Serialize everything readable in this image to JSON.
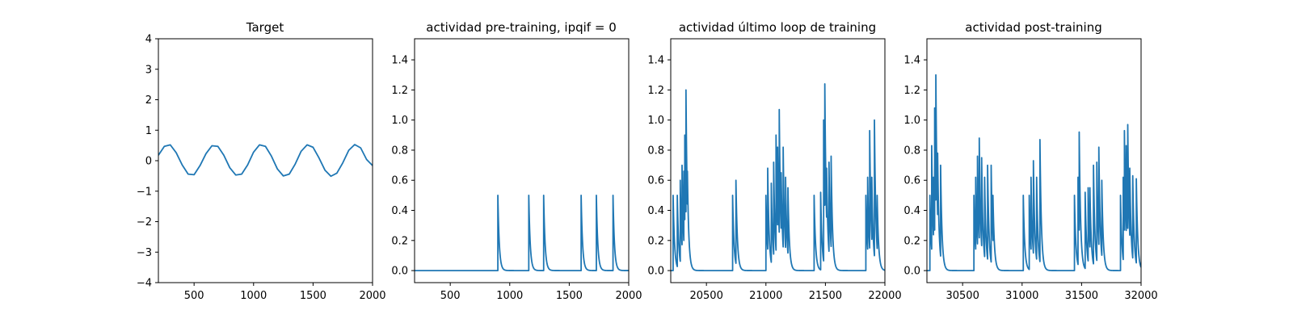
{
  "figure": {
    "background": "#ffffff"
  },
  "chart_data": [
    {
      "type": "line",
      "title": "Target",
      "xlabel": "",
      "ylabel": "",
      "xlim": [
        200,
        2000
      ],
      "ylim": [
        -4,
        4
      ],
      "xticks": [
        500,
        1000,
        1500,
        2000
      ],
      "yticks": [
        -4,
        -3,
        -2,
        -1,
        0,
        1,
        2,
        3,
        4
      ],
      "ytick_labels": [
        "−4",
        "−3",
        "−2",
        "−1",
        "0",
        "1",
        "2",
        "3",
        "4"
      ],
      "grid": false,
      "series": [
        {
          "color": "#1f77b4",
          "x": [
            200,
            250,
            300,
            350,
            400,
            450,
            500,
            550,
            600,
            650,
            700,
            750,
            800,
            850,
            900,
            950,
            1000,
            1050,
            1100,
            1150,
            1200,
            1250,
            1300,
            1350,
            1400,
            1450,
            1500,
            1550,
            1600,
            1650,
            1700,
            1750,
            1800,
            1850,
            1900,
            1950,
            2000
          ],
          "y": [
            0.18,
            0.47,
            0.52,
            0.26,
            -0.14,
            -0.44,
            -0.46,
            -0.16,
            0.23,
            0.49,
            0.47,
            0.18,
            -0.23,
            -0.47,
            -0.44,
            -0.14,
            0.28,
            0.52,
            0.47,
            0.15,
            -0.27,
            -0.5,
            -0.44,
            -0.11,
            0.31,
            0.52,
            0.44,
            0.09,
            -0.31,
            -0.51,
            -0.41,
            -0.07,
            0.34,
            0.53,
            0.42,
            0.04,
            -0.16
          ]
        }
      ]
    },
    {
      "type": "line",
      "title": "actividad pre-training, ipqif = 0",
      "xlabel": "",
      "ylabel": "",
      "xlim": [
        200,
        2000
      ],
      "ylim": [
        -0.08,
        1.54
      ],
      "xticks": [
        500,
        1000,
        1500,
        2000
      ],
      "yticks": [
        0.0,
        0.2,
        0.4,
        0.6,
        0.8,
        1.0,
        1.2,
        1.4
      ],
      "ytick_labels": [
        "0.0",
        "0.2",
        "0.4",
        "0.6",
        "0.8",
        "1.0",
        "1.2",
        "1.4"
      ],
      "grid": false,
      "series": [
        {
          "color": "#1f77b4",
          "spikes": [
            [
              900,
              0.5
            ],
            [
              1160,
              0.5
            ],
            [
              1285,
              0.5
            ],
            [
              1600,
              0.5
            ],
            [
              1728,
              0.5
            ],
            [
              1868,
              0.5
            ]
          ]
        }
      ]
    },
    {
      "type": "line",
      "title": "actividad último loop de training",
      "xlabel": "",
      "ylabel": "",
      "xlim": [
        20200,
        22000
      ],
      "ylim": [
        -0.08,
        1.54
      ],
      "xticks": [
        20500,
        21000,
        21500,
        22000
      ],
      "yticks": [
        0.0,
        0.2,
        0.4,
        0.6,
        0.8,
        1.0,
        1.2,
        1.4
      ],
      "ytick_labels": [
        "0.0",
        "0.2",
        "0.4",
        "0.6",
        "0.8",
        "1.0",
        "1.2",
        "1.4"
      ],
      "grid": false,
      "series": [
        {
          "color": "#1f77b4",
          "spikes": [
            [
              20220,
              0.5
            ],
            [
              20255,
              0.5
            ],
            [
              20280,
              0.6
            ],
            [
              20295,
              0.7
            ],
            [
              20310,
              0.66
            ],
            [
              20318,
              0.9
            ],
            [
              20328,
              1.2
            ],
            [
              20340,
              0.66
            ],
            [
              20720,
              0.5
            ],
            [
              20748,
              0.6
            ],
            [
              21000,
              0.5
            ],
            [
              21015,
              0.68
            ],
            [
              21045,
              0.58
            ],
            [
              21065,
              0.72
            ],
            [
              21085,
              0.9
            ],
            [
              21098,
              0.82
            ],
            [
              21112,
              1.07
            ],
            [
              21128,
              0.65
            ],
            [
              21145,
              0.82
            ],
            [
              21165,
              0.62
            ],
            [
              21185,
              0.55
            ],
            [
              21405,
              0.5
            ],
            [
              21460,
              0.52
            ],
            [
              21485,
              1.0
            ],
            [
              21495,
              1.24
            ],
            [
              21510,
              0.68
            ],
            [
              21530,
              0.72
            ],
            [
              21548,
              0.76
            ],
            [
              21840,
              0.5
            ],
            [
              21855,
              0.62
            ],
            [
              21872,
              0.93
            ],
            [
              21890,
              0.62
            ],
            [
              21912,
              1.0
            ],
            [
              21935,
              0.5
            ]
          ]
        }
      ]
    },
    {
      "type": "line",
      "title": "actividad post-training",
      "xlabel": "",
      "ylabel": "",
      "xlim": [
        30200,
        32000
      ],
      "ylim": [
        -0.08,
        1.54
      ],
      "xticks": [
        30500,
        31000,
        31500,
        32000
      ],
      "yticks": [
        0.0,
        0.2,
        0.4,
        0.6,
        0.8,
        1.0,
        1.2,
        1.4
      ],
      "ytick_labels": [
        "0.0",
        "0.2",
        "0.4",
        "0.6",
        "0.8",
        "1.0",
        "1.2",
        "1.4"
      ],
      "grid": false,
      "series": [
        {
          "color": "#1f77b4",
          "spikes": [
            [
              30225,
              0.5
            ],
            [
              30240,
              0.83
            ],
            [
              30255,
              0.62
            ],
            [
              30265,
              1.08
            ],
            [
              30275,
              1.3
            ],
            [
              30290,
              0.78
            ],
            [
              30315,
              0.7
            ],
            [
              30595,
              0.5
            ],
            [
              30610,
              0.62
            ],
            [
              30625,
              0.76
            ],
            [
              30640,
              0.88
            ],
            [
              30660,
              0.75
            ],
            [
              30685,
              0.62
            ],
            [
              30710,
              0.7
            ],
            [
              30740,
              0.7
            ],
            [
              30755,
              0.5
            ],
            [
              31010,
              0.5
            ],
            [
              31060,
              0.5
            ],
            [
              31075,
              0.62
            ],
            [
              31095,
              0.73
            ],
            [
              31122,
              0.62
            ],
            [
              31150,
              0.87
            ],
            [
              31440,
              0.5
            ],
            [
              31470,
              0.62
            ],
            [
              31480,
              0.92
            ],
            [
              31530,
              0.52
            ],
            [
              31555,
              0.55
            ],
            [
              31570,
              0.55
            ],
            [
              31600,
              0.7
            ],
            [
              31628,
              0.72
            ],
            [
              31645,
              0.82
            ],
            [
              31670,
              0.6
            ],
            [
              31827,
              0.5
            ],
            [
              31850,
              0.62
            ],
            [
              31860,
              0.93
            ],
            [
              31875,
              0.83
            ],
            [
              31888,
              0.97
            ],
            [
              31905,
              0.68
            ],
            [
              31930,
              0.63
            ],
            [
              31960,
              0.61
            ]
          ]
        }
      ]
    }
  ]
}
